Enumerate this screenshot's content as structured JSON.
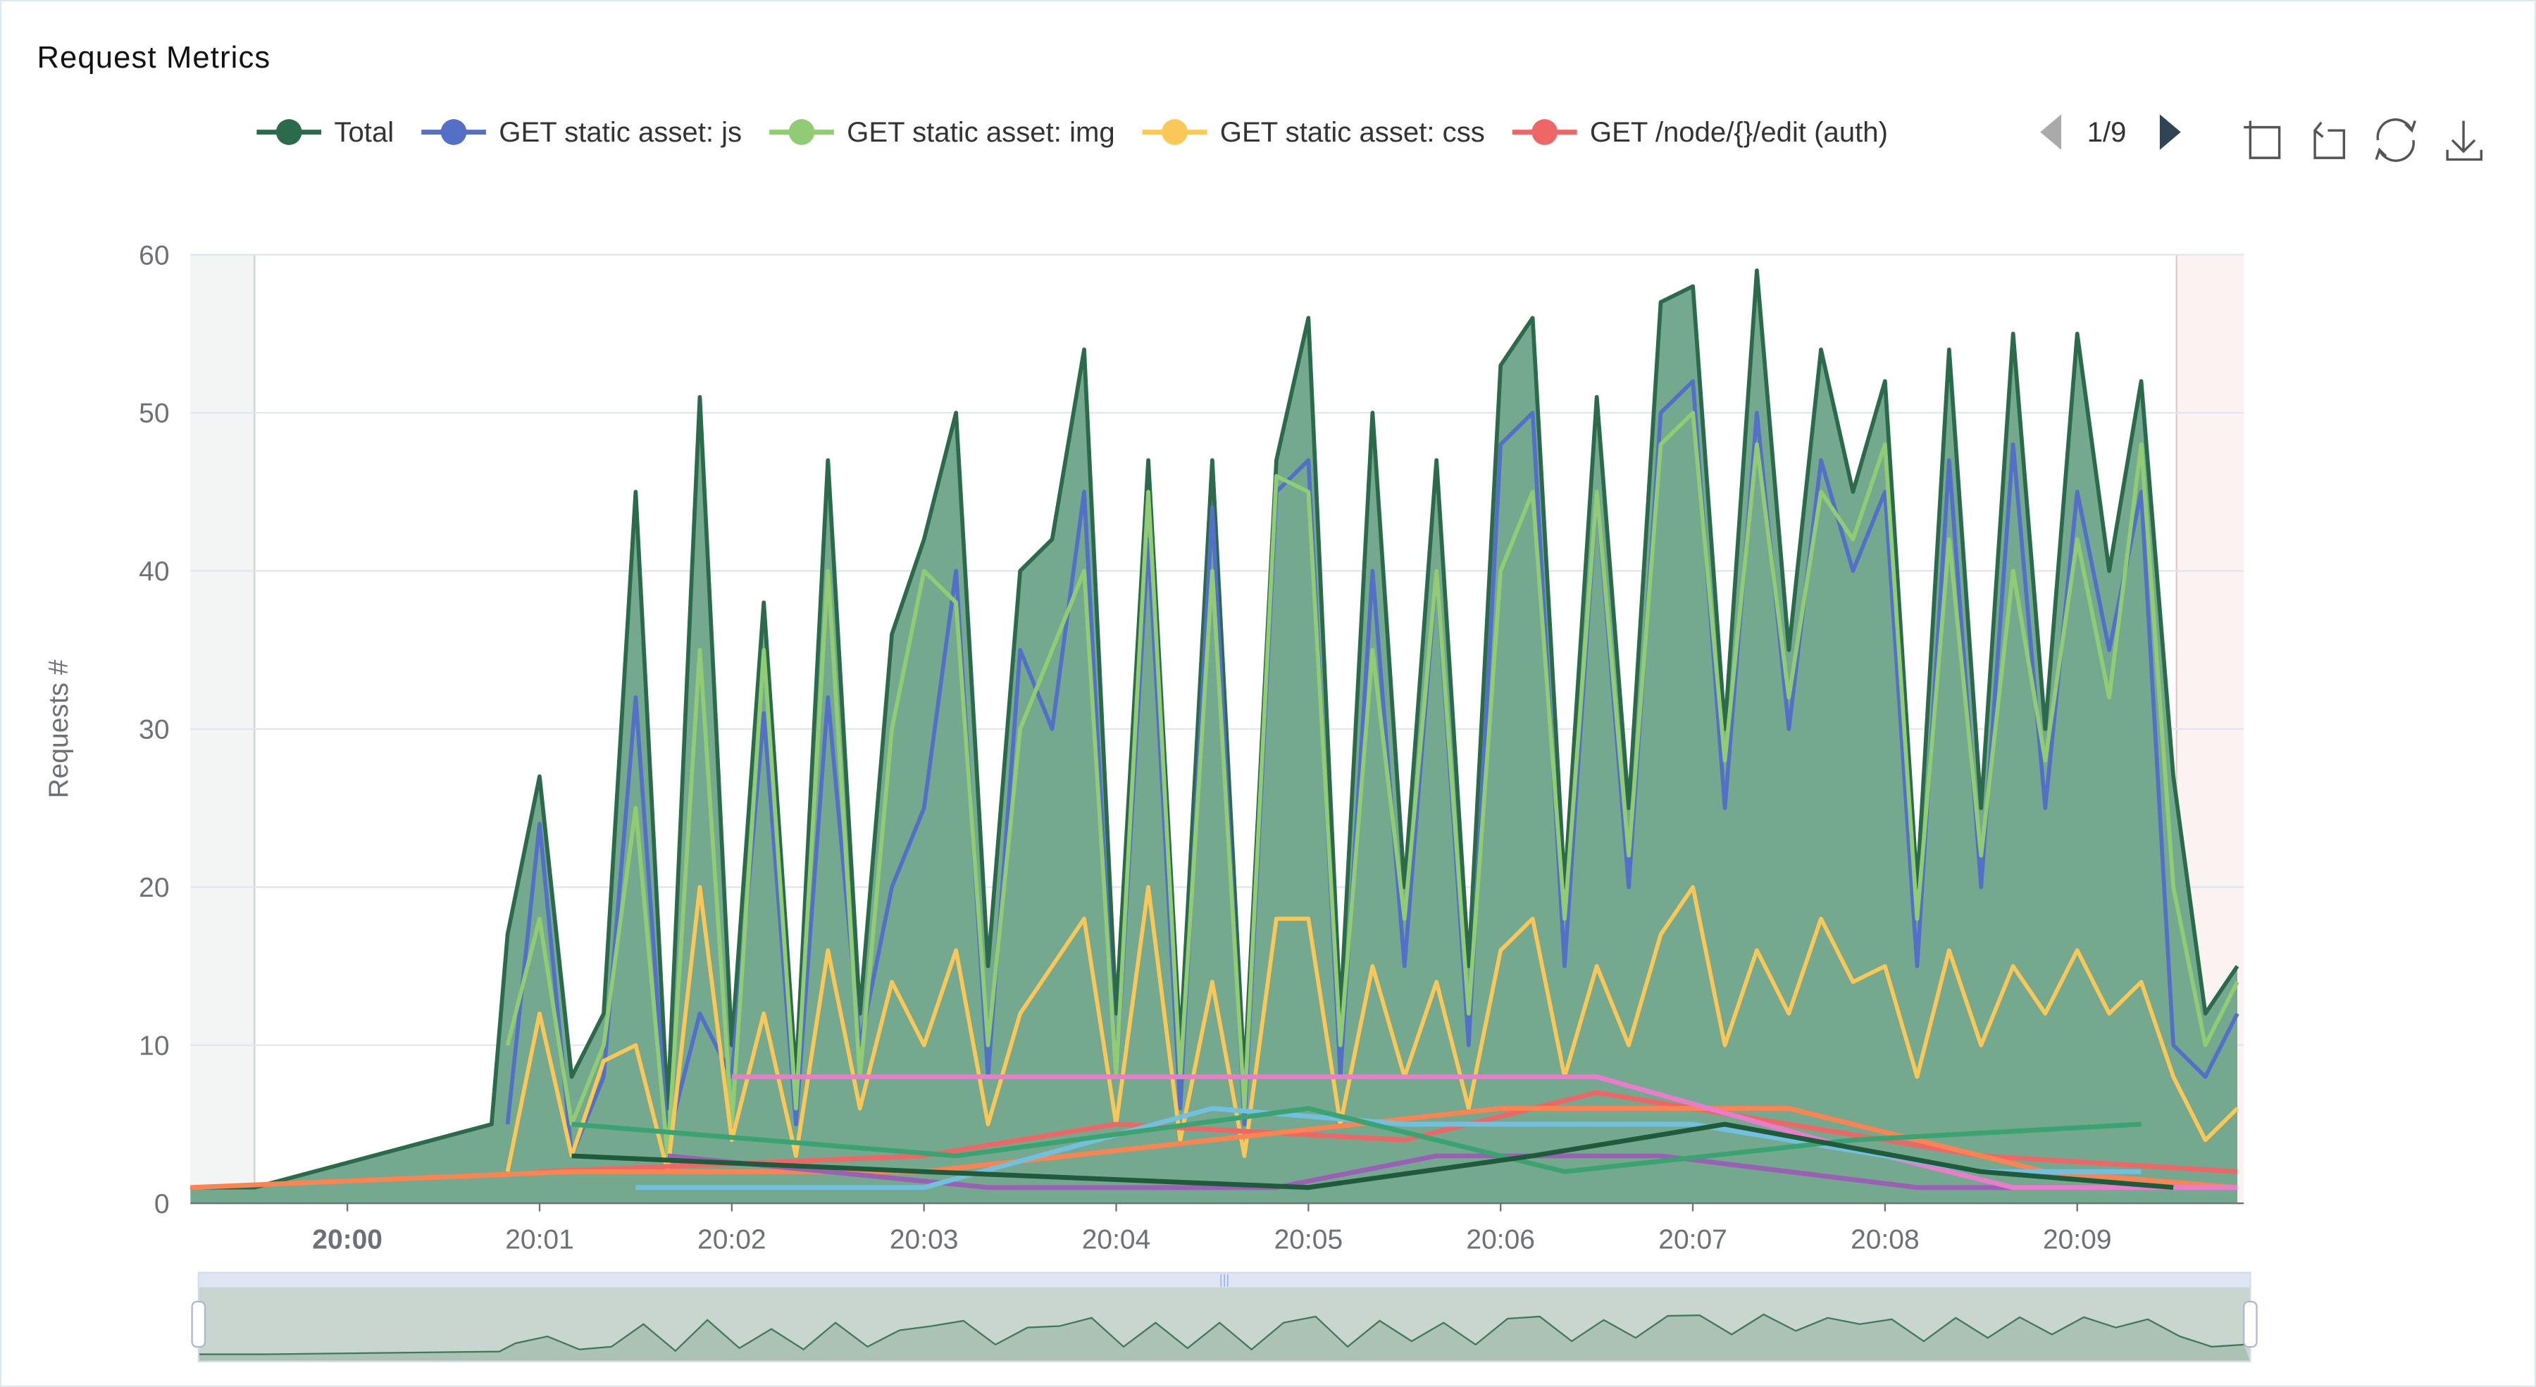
{
  "title": "Request Metrics",
  "legend": {
    "items": [
      {
        "name": "Total",
        "color": "#2b6a4b"
      },
      {
        "name": "GET static asset: js",
        "color": "#5470c6"
      },
      {
        "name": "GET static asset: img",
        "color": "#91cc75"
      },
      {
        "name": "GET static asset: css",
        "color": "#fac858"
      },
      {
        "name": "GET /node/{}/edit (auth)",
        "color": "#ee6666"
      }
    ],
    "page": "1/9",
    "icons": [
      "chevron-left-icon",
      "chevron-right-icon"
    ]
  },
  "toolbox": [
    "zoom-icon",
    "zoom-reset-icon",
    "restore-icon",
    "download-icon"
  ],
  "chart_data": {
    "type": "line",
    "title": "Request Metrics",
    "ylabel": "Requests #",
    "xlabel": "",
    "ylim": [
      0,
      60
    ],
    "yticks": [
      "0",
      "10",
      "20",
      "30",
      "40",
      "50",
      "60"
    ],
    "xlim": [
      "19:59:11",
      "20:09:52"
    ],
    "xticks": [
      "20:00",
      "20:01",
      "20:02",
      "20:03",
      "20:04",
      "20:05",
      "20:06",
      "20:07",
      "20:08",
      "20:09"
    ],
    "grid": true,
    "legend_position": "top",
    "marked_areas": [
      {
        "from": "19:59:11",
        "to": "19:59:31",
        "color": "#f3f5f4"
      },
      {
        "from": "20:09:31",
        "to": "20:09:52",
        "color": "#fbf2f2"
      }
    ],
    "x": [
      "20:00:50",
      "20:01:00",
      "20:01:10",
      "20:01:20",
      "20:01:30",
      "20:01:40",
      "20:01:50",
      "20:02:00",
      "20:02:10",
      "20:02:20",
      "20:02:30",
      "20:02:40",
      "20:02:50",
      "20:03:00",
      "20:03:10",
      "20:03:20",
      "20:03:30",
      "20:03:40",
      "20:03:50",
      "20:04:00",
      "20:04:10",
      "20:04:20",
      "20:04:30",
      "20:04:40",
      "20:04:50",
      "20:05:00",
      "20:05:10",
      "20:05:20",
      "20:05:30",
      "20:05:40",
      "20:05:50",
      "20:06:00",
      "20:06:10",
      "20:06:20",
      "20:06:30",
      "20:06:40",
      "20:06:50",
      "20:07:00",
      "20:07:10",
      "20:07:20",
      "20:07:30",
      "20:07:40",
      "20:07:50",
      "20:08:00",
      "20:08:10",
      "20:08:20",
      "20:08:30",
      "20:08:40",
      "20:08:50",
      "20:09:00",
      "20:09:10",
      "20:09:20",
      "20:09:30",
      "20:09:40",
      "20:09:50"
    ],
    "series": [
      {
        "name": "Total",
        "color": "#2b6a4b",
        "area": true,
        "lead_in": [
          [
            "19:59:11",
            1
          ],
          [
            "19:59:31",
            1
          ],
          [
            "20:00:45",
            5
          ]
        ],
        "values": [
          17,
          27,
          8,
          12,
          45,
          6,
          51,
          10,
          38,
          8,
          47,
          12,
          36,
          42,
          50,
          15,
          40,
          42,
          54,
          12,
          47,
          10,
          47,
          8,
          47,
          56,
          12,
          50,
          20,
          47,
          15,
          53,
          56,
          20,
          51,
          25,
          57,
          58,
          30,
          59,
          35,
          54,
          45,
          52,
          20,
          54,
          25,
          55,
          30,
          55,
          40,
          52,
          27,
          12,
          15
        ]
      },
      {
        "name": "GET static asset: js",
        "color": "#5470c6",
        "values": [
          5,
          24,
          3,
          8,
          32,
          4,
          12,
          8,
          31,
          5,
          32,
          10,
          20,
          25,
          40,
          8,
          35,
          30,
          45,
          8,
          42,
          6,
          44,
          5,
          45,
          47,
          8,
          40,
          15,
          40,
          10,
          48,
          50,
          15,
          45,
          20,
          50,
          52,
          25,
          50,
          30,
          47,
          40,
          45,
          15,
          47,
          20,
          48,
          25,
          45,
          35,
          45,
          10,
          8,
          12
        ]
      },
      {
        "name": "GET static asset: img",
        "color": "#91cc75",
        "values": [
          10,
          18,
          5,
          10,
          25,
          3,
          35,
          5,
          35,
          6,
          40,
          8,
          30,
          40,
          38,
          10,
          30,
          35,
          40,
          8,
          45,
          8,
          40,
          6,
          46,
          45,
          10,
          35,
          18,
          40,
          12,
          40,
          45,
          18,
          45,
          22,
          48,
          50,
          28,
          48,
          32,
          45,
          42,
          48,
          18,
          42,
          22,
          40,
          28,
          42,
          32,
          48,
          20,
          10,
          14
        ]
      },
      {
        "name": "GET static asset: css",
        "color": "#fac858",
        "values": [
          2,
          12,
          3,
          9,
          10,
          2,
          20,
          4,
          12,
          3,
          16,
          6,
          14,
          10,
          16,
          5,
          12,
          15,
          18,
          5,
          20,
          4,
          14,
          3,
          18,
          18,
          5,
          15,
          8,
          14,
          6,
          16,
          18,
          8,
          15,
          10,
          17,
          20,
          10,
          16,
          12,
          18,
          14,
          15,
          8,
          16,
          10,
          15,
          12,
          16,
          12,
          14,
          8,
          4,
          6
        ]
      },
      {
        "name": "GET /node/{}/edit (auth)",
        "color": "#ee6666",
        "points": [
          [
            "20:01:00",
            2
          ],
          [
            "20:03:00",
            3
          ],
          [
            "20:04:00",
            5
          ],
          [
            "20:05:30",
            4
          ],
          [
            "20:06:30",
            7
          ],
          [
            "20:07:30",
            5
          ],
          [
            "20:08:30",
            3
          ],
          [
            "20:09:50",
            2
          ]
        ]
      },
      {
        "color": "#fc8452",
        "points": [
          [
            "19:59:11",
            1
          ],
          [
            "20:01:10",
            2
          ],
          [
            "20:03:00",
            2
          ],
          [
            "20:04:30",
            4
          ],
          [
            "20:06:00",
            6
          ],
          [
            "20:07:30",
            6
          ],
          [
            "20:08:50",
            2
          ],
          [
            "20:09:50",
            1
          ]
        ]
      },
      {
        "color": "#9a60b4",
        "points": [
          [
            "20:01:40",
            3
          ],
          [
            "20:03:20",
            1
          ],
          [
            "20:04:50",
            1
          ],
          [
            "20:05:40",
            3
          ],
          [
            "20:06:50",
            3
          ],
          [
            "20:08:10",
            1
          ],
          [
            "20:09:00",
            1
          ]
        ]
      },
      {
        "color": "#ea7ccc",
        "points": [
          [
            "20:02:00",
            8
          ],
          [
            "20:04:00",
            8
          ],
          [
            "20:06:30",
            8
          ],
          [
            "20:07:40",
            4
          ],
          [
            "20:08:40",
            1
          ],
          [
            "20:09:50",
            1
          ]
        ]
      },
      {
        "color": "#73c0de",
        "points": [
          [
            "20:01:30",
            1
          ],
          [
            "20:03:00",
            1
          ],
          [
            "20:04:30",
            6
          ],
          [
            "20:05:30",
            5
          ],
          [
            "20:07:00",
            5
          ],
          [
            "20:08:30",
            2
          ],
          [
            "20:09:20",
            2
          ]
        ]
      },
      {
        "color": "#3ba272",
        "points": [
          [
            "20:01:10",
            5
          ],
          [
            "20:03:10",
            3
          ],
          [
            "20:05:00",
            6
          ],
          [
            "20:06:20",
            2
          ],
          [
            "20:07:50",
            4
          ],
          [
            "20:09:20",
            5
          ]
        ]
      },
      {
        "color": "#1f5a3b",
        "points": [
          [
            "20:01:10",
            3
          ],
          [
            "20:03:00",
            2
          ],
          [
            "20:05:00",
            1
          ],
          [
            "20:06:10",
            3
          ],
          [
            "20:07:10",
            5
          ],
          [
            "20:08:30",
            2
          ],
          [
            "20:09:30",
            1
          ]
        ]
      }
    ]
  }
}
